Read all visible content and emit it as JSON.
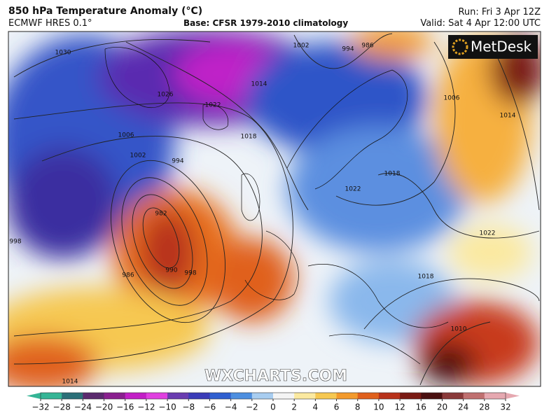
{
  "header": {
    "title": "850 hPa Temperature Anomaly (°C)",
    "model": "ECMWF HRES 0.1°",
    "base": "Base: CFSR 1979-2010 climatology",
    "run": "Run: Fri 3 Apr 12Z",
    "valid": "Valid: Sat 4 Apr 12:00 UTC"
  },
  "logo": "MetDesk",
  "watermark": "WXCHARTS.COM",
  "isobar_labels": [
    "1030",
    "1026",
    "1022",
    "1018",
    "1014",
    "1006",
    "1002",
    "994",
    "982",
    "986",
    "990",
    "998",
    "998",
    "1002",
    "994",
    "986",
    "1006",
    "1014",
    "1018",
    "1022",
    "1022",
    "1018",
    "1010",
    "1014"
  ],
  "colorbar": {
    "labels": [
      "−32",
      "−28",
      "−24",
      "−20",
      "−16",
      "−12",
      "−10",
      "−8",
      "−6",
      "−4",
      "−2",
      "0",
      "2",
      "4",
      "6",
      "8",
      "10",
      "12",
      "16",
      "20",
      "24",
      "28",
      "32"
    ],
    "colors": [
      "#35b596",
      "#2b6f78",
      "#5b2a6e",
      "#8a1f8f",
      "#c21ec6",
      "#e040e0",
      "#6a3cb0",
      "#3b3cb8",
      "#2f5fd0",
      "#4d8fe0",
      "#a8cdf0",
      "#f4f4f4",
      "#fbe9a0",
      "#f6c851",
      "#f39a2c",
      "#e0601c",
      "#b8321a",
      "#7a1a14",
      "#4a1010",
      "#8a3a3a",
      "#c07070",
      "#e6a8b0"
    ]
  }
}
